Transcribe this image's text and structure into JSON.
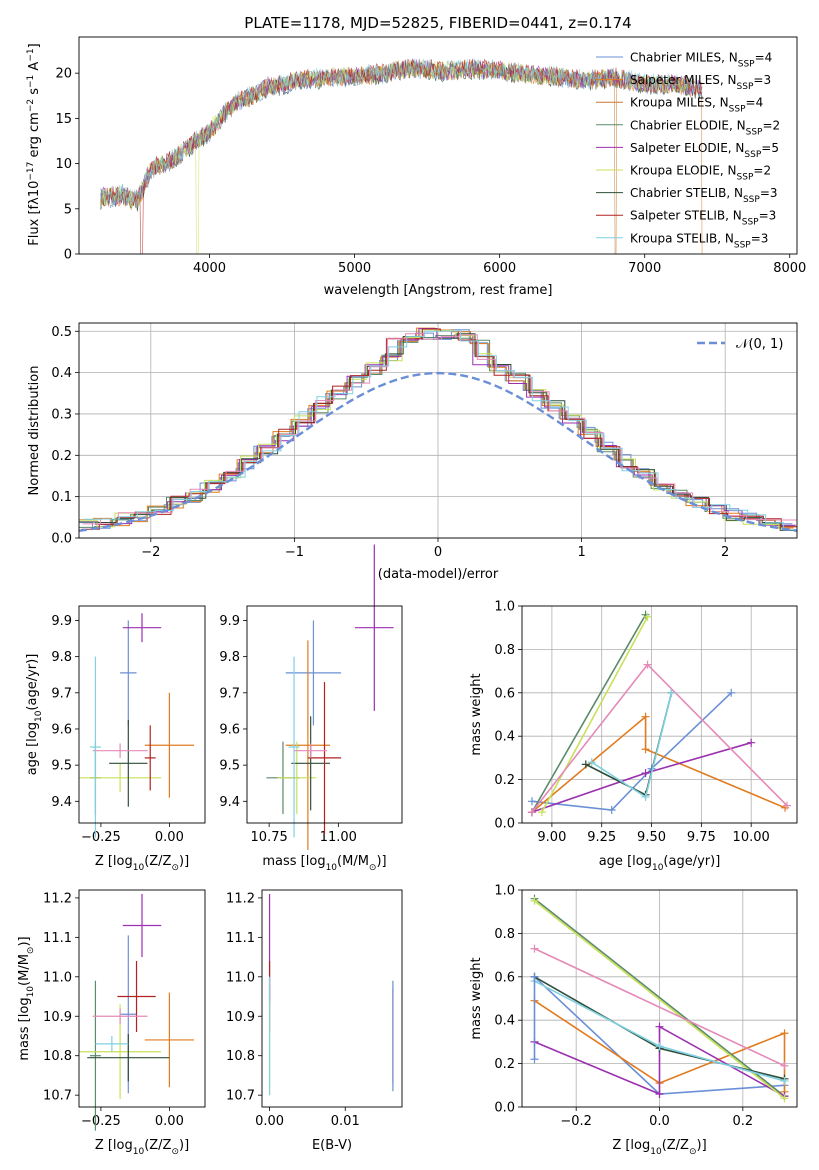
{
  "figure": {
    "title": "PLATE=1178, MJD=52825, FIBERID=0441, z=0.174"
  },
  "colors": {
    "chabrier_miles": "#6b8fd6",
    "salpeter_miles": "#e07b1f",
    "kroupa_miles": "#c9792e",
    "chabrier_elodie": "#5a8a6a",
    "salpeter_elodie": "#9b30b0",
    "kroupa_elodie": "#c8e05a",
    "chabrier_stelib": "#2f4f3a",
    "salpeter_stelib": "#b22222",
    "kroupa_stelib": "#7fd0e0",
    "gaussian": "#6b8fd6",
    "pink": "#e58ab8"
  },
  "chart_data": [
    {
      "id": "spectrum",
      "type": "line",
      "xlabel": "wavelength [Angstrom, rest frame]",
      "ylabel": "Flux [f",
      "ylabel_tex": "λ10",
      "ylabel_sup1": "−17",
      "ylabel_mid": " erg cm",
      "ylabel_sup2": "−2",
      "ylabel_mid2": " s",
      "ylabel_sup3": "−1",
      "ylabel_end": " A",
      "ylabel_sup4": "−1",
      "ylabel_close": "]",
      "xlim": [
        3100,
        8050
      ],
      "ylim": [
        0,
        24
      ],
      "xticks": [
        4000,
        5000,
        6000,
        7000,
        8000
      ],
      "yticks": [
        0,
        5,
        10,
        15,
        20
      ],
      "legend_position": "top-right",
      "envelope": {
        "x": [
          3250,
          3400,
          3500,
          3600,
          3700,
          3800,
          3900,
          4000,
          4100,
          4200,
          4300,
          4400,
          4500,
          4600,
          4800,
          5000,
          5200,
          5400,
          5600,
          5800,
          6000,
          6200,
          6400,
          6600,
          6800,
          7000,
          7200,
          7400
        ],
        "y": [
          6.2,
          6.5,
          5.8,
          9.5,
          10.0,
          11.0,
          12.5,
          13.5,
          15.5,
          17.0,
          17.5,
          18.5,
          18.7,
          19.2,
          19.5,
          19.6,
          20.0,
          20.6,
          20.2,
          20.5,
          20.3,
          19.8,
          19.6,
          19.2,
          19.5,
          18.8,
          18.8,
          18.2
        ]
      },
      "legend": [
        {
          "label": "Chabrier MILES, N",
          "sub": "SSP",
          "suffix": "=4",
          "color": "#6b8fd6"
        },
        {
          "label": "Salpeter MILES, N",
          "sub": "SSP",
          "suffix": "=3",
          "color": "#e07b1f"
        },
        {
          "label": "Kroupa MILES, N",
          "sub": "SSP",
          "suffix": "=4",
          "color": "#c9792e"
        },
        {
          "label": "Chabrier ELODIE, N",
          "sub": "SSP",
          "suffix": "=2",
          "color": "#5a8a6a"
        },
        {
          "label": "Salpeter ELODIE, N",
          "sub": "SSP",
          "suffix": "=5",
          "color": "#9b30b0"
        },
        {
          "label": "Kroupa ELODIE, N",
          "sub": "SSP",
          "suffix": "=2",
          "color": "#c8e05a"
        },
        {
          "label": "Chabrier STELIB, N",
          "sub": "SSP",
          "suffix": "=3",
          "color": "#2f4f3a"
        },
        {
          "label": "Salpeter STELIB, N",
          "sub": "SSP",
          "suffix": "=3",
          "color": "#b22222"
        },
        {
          "label": "Kroupa STELIB, N",
          "sub": "SSP",
          "suffix": "=3",
          "color": "#7fd0e0"
        }
      ]
    },
    {
      "id": "residuals",
      "type": "line",
      "xlabel": "(data-model)/error",
      "ylabel": "Normed distribution",
      "xlim": [
        -2.5,
        2.5
      ],
      "ylim": [
        0,
        0.52
      ],
      "xticks": [
        -2,
        -1,
        0,
        1,
        2
      ],
      "xtick_labels": [
        "−2",
        "−1",
        "0",
        "1",
        "2"
      ],
      "yticks": [
        0.0,
        0.1,
        0.2,
        0.3,
        0.4,
        0.5
      ],
      "ytick_labels": [
        "0.0",
        "0.1",
        "0.2",
        "0.3",
        "0.4",
        "0.5"
      ],
      "grid": true,
      "legend_position": "top-right",
      "gaussian_label": "𝒩(0, 1)",
      "hist_bins": 40
    },
    {
      "id": "age_vs_Z",
      "type": "scatter",
      "xlabel": "Z [log",
      "xlabel_sub": "10",
      "xlabel_rest": "(Z/Z",
      "xlabel_sub2": "⊙",
      "xlabel_end": ")]",
      "ylabel": "age  [log",
      "ylabel_sub": "10",
      "ylabel_rest": "(age/yr)]",
      "xlim": [
        -0.33,
        0.13
      ],
      "ylim": [
        9.34,
        9.94
      ],
      "xticks": [
        -0.25,
        0.0
      ],
      "xtick_labels": [
        "−0.25",
        "0.00"
      ],
      "yticks": [
        9.4,
        9.5,
        9.6,
        9.7,
        9.8,
        9.9
      ],
      "ytick_labels": [
        "9.4",
        "9.5",
        "9.6",
        "9.7",
        "9.8",
        "9.9"
      ],
      "points": [
        {
          "x": -0.15,
          "y": 9.755,
          "xerr": 0.03,
          "yerr": 0.145,
          "color": "#6b8fd6"
        },
        {
          "x": 0.0,
          "y": 9.555,
          "xerr": 0.09,
          "yerr": 0.145,
          "color": "#e07b1f"
        },
        {
          "x": -0.27,
          "y": 9.465,
          "xerr": 0.02,
          "yerr": 0.1,
          "color": "#5a8a6a"
        },
        {
          "x": -0.1,
          "y": 9.88,
          "xerr": 0.07,
          "yerr": 0.04,
          "color": "#9b30b0"
        },
        {
          "x": -0.18,
          "y": 9.465,
          "xerr": 0.15,
          "yerr": 0.04,
          "color": "#c8e05a"
        },
        {
          "x": -0.15,
          "y": 9.505,
          "xerr": 0.07,
          "yerr": 0.12,
          "color": "#2f4f3a"
        },
        {
          "x": -0.07,
          "y": 9.52,
          "xerr": 0.02,
          "yerr": 0.09,
          "color": "#b22222"
        },
        {
          "x": -0.18,
          "y": 9.54,
          "xerr": 0.1,
          "yerr": 0.02,
          "color": "#e58ab8"
        },
        {
          "x": -0.27,
          "y": 9.55,
          "xerr": 0.02,
          "yerr": 0.25,
          "color": "#7fd0e0"
        }
      ]
    },
    {
      "id": "age_vs_mass",
      "type": "scatter",
      "xlabel": "mass [log",
      "xlabel_sub": "10",
      "xlabel_rest": "(M/M",
      "xlabel_sub2": "⊙",
      "xlabel_end": ")]",
      "xlim": [
        10.67,
        11.23
      ],
      "ylim": [
        9.34,
        9.94
      ],
      "xticks": [
        10.75,
        11.0
      ],
      "xtick_labels": [
        "10.75",
        "11.00"
      ],
      "yticks": [
        9.4,
        9.5,
        9.6,
        9.7,
        9.8,
        9.9
      ],
      "ytick_labels": [
        "9.4",
        "9.5",
        "9.6",
        "9.7",
        "9.8",
        "9.9"
      ],
      "points": [
        {
          "x": 10.91,
          "y": 9.755,
          "xerr": 0.1,
          "yerr": 0.145,
          "color": "#6b8fd6"
        },
        {
          "x": 10.89,
          "y": 9.555,
          "xerr": 0.08,
          "yerr": 0.29,
          "color": "#e07b1f"
        },
        {
          "x": 10.8,
          "y": 9.465,
          "xerr": 0.06,
          "yerr": 0.1,
          "color": "#5a8a6a"
        },
        {
          "x": 11.13,
          "y": 9.88,
          "xerr": 0.07,
          "yerr": 0.23,
          "color": "#9b30b0"
        },
        {
          "x": 10.85,
          "y": 9.465,
          "xerr": 0.07,
          "yerr": 0.1,
          "color": "#c8e05a"
        },
        {
          "x": 10.9,
          "y": 9.505,
          "xerr": 0.07,
          "yerr": 0.13,
          "color": "#2f4f3a"
        },
        {
          "x": 10.95,
          "y": 9.52,
          "xerr": 0.06,
          "yerr": 0.21,
          "color": "#b22222"
        },
        {
          "x": 10.9,
          "y": 9.54,
          "xerr": 0.06,
          "yerr": 0.02,
          "color": "#e58ab8"
        },
        {
          "x": 10.84,
          "y": 9.55,
          "xerr": 0.02,
          "yerr": 0.25,
          "color": "#7fd0e0"
        }
      ]
    },
    {
      "id": "weight_vs_age",
      "type": "line",
      "xlabel": "age  [log",
      "xlabel_sub": "10",
      "xlabel_rest": "(age/yr)]",
      "ylabel": "mass weight",
      "xlim": [
        8.85,
        10.23
      ],
      "ylim": [
        0,
        1
      ],
      "xticks": [
        9.0,
        9.25,
        9.5,
        9.75,
        10.0
      ],
      "xtick_labels": [
        "9.00",
        "9.25",
        "9.50",
        "9.75",
        "10.00"
      ],
      "yticks": [
        0.0,
        0.2,
        0.4,
        0.6,
        0.8,
        1.0
      ],
      "ytick_labels": [
        "0.0",
        "0.2",
        "0.4",
        "0.6",
        "0.8",
        "1.0"
      ],
      "grid": true,
      "series": [
        {
          "color": "#6b8fd6",
          "x": [
            8.9,
            9.3,
            9.5,
            9.9
          ],
          "y": [
            0.1,
            0.06,
            0.25,
            0.6
          ]
        },
        {
          "color": "#e07b1f",
          "x": [
            8.9,
            9.47,
            9.47,
            10.17
          ],
          "y": [
            0.05,
            0.49,
            0.34,
            0.07
          ]
        },
        {
          "color": "#5a8a6a",
          "x": [
            8.9,
            9.47
          ],
          "y": [
            0.05,
            0.96
          ]
        },
        {
          "color": "#9b30b0",
          "x": [
            8.9,
            9.47,
            10.0
          ],
          "y": [
            0.05,
            0.23,
            0.37
          ]
        },
        {
          "color": "#c8e05a",
          "x": [
            8.95,
            9.48
          ],
          "y": [
            0.05,
            0.95
          ]
        },
        {
          "color": "#2f4f3a",
          "x": [
            9.17,
            9.47,
            9.6
          ],
          "y": [
            0.27,
            0.13,
            0.6
          ]
        },
        {
          "color": "#e58ab8",
          "x": [
            8.9,
            9.48,
            10.18
          ],
          "y": [
            0.05,
            0.73,
            0.08
          ]
        },
        {
          "color": "#7fd0e0",
          "x": [
            9.2,
            9.47,
            9.6
          ],
          "y": [
            0.28,
            0.12,
            0.6
          ]
        }
      ]
    },
    {
      "id": "mass_vs_Z",
      "type": "scatter",
      "xlabel": "Z [log",
      "xlabel_sub": "10",
      "xlabel_rest": "(Z/Z",
      "xlabel_sub2": "⊙",
      "xlabel_end": ")]",
      "ylabel": "mass [log",
      "ylabel_sub": "10",
      "ylabel_rest": "(M/M",
      "ylabel_sub2": "⊙",
      "ylabel_end": ")]",
      "xlim": [
        -0.33,
        0.13
      ],
      "ylim": [
        10.67,
        11.22
      ],
      "xticks": [
        -0.25,
        0.0
      ],
      "xtick_labels": [
        "−0.25",
        "0.00"
      ],
      "yticks": [
        10.7,
        10.8,
        10.9,
        11.0,
        11.1,
        11.2
      ],
      "ytick_labels": [
        "10.7",
        "10.8",
        "10.9",
        "11.0",
        "11.1",
        "11.2"
      ],
      "points": [
        {
          "x": -0.15,
          "y": 10.905,
          "xerr": 0.03,
          "yerr": 0.2,
          "color": "#6b8fd6"
        },
        {
          "x": 0.0,
          "y": 10.84,
          "xerr": 0.09,
          "yerr": 0.12,
          "color": "#e07b1f"
        },
        {
          "x": -0.27,
          "y": 10.8,
          "xerr": 0.02,
          "yerr": 0.19,
          "color": "#5a8a6a"
        },
        {
          "x": -0.1,
          "y": 11.13,
          "xerr": 0.07,
          "yerr": 0.08,
          "color": "#9b30b0"
        },
        {
          "x": -0.18,
          "y": 10.81,
          "xerr": 0.15,
          "yerr": 0.12,
          "color": "#c8e05a"
        },
        {
          "x": -0.15,
          "y": 10.795,
          "xerr": 0.15,
          "yerr": 0.06,
          "color": "#2f4f3a"
        },
        {
          "x": -0.12,
          "y": 10.95,
          "xerr": 0.07,
          "yerr": 0.09,
          "color": "#b22222"
        },
        {
          "x": -0.18,
          "y": 10.9,
          "xerr": 0.1,
          "yerr": 0.02,
          "color": "#e58ab8"
        },
        {
          "x": -0.21,
          "y": 10.83,
          "xerr": 0.06,
          "yerr": 0.02,
          "color": "#7fd0e0"
        }
      ]
    },
    {
      "id": "mass_vs_ebv",
      "type": "scatter",
      "xlabel": "E(B-V)",
      "xlim": [
        -0.001,
        0.0175
      ],
      "ylim": [
        10.67,
        11.22
      ],
      "xticks": [
        0.0,
        0.01
      ],
      "xtick_labels": [
        "0.00",
        "0.01"
      ],
      "yticks": [
        10.7,
        10.8,
        10.9,
        11.0,
        11.1,
        11.2
      ],
      "ytick_labels": [
        "10.7",
        "10.8",
        "10.9",
        "11.0",
        "11.1",
        "11.2"
      ],
      "points": [
        {
          "x": 0.0,
          "y": 11.07,
          "xerr": 0.0,
          "yerr": 0.14,
          "color": "#9b30b0"
        },
        {
          "x": 0.0,
          "y": 10.95,
          "xerr": 0.0,
          "yerr": 0.09,
          "color": "#b22222"
        },
        {
          "x": 0.0,
          "y": 10.82,
          "xerr": 0.0,
          "yerr": 0.12,
          "color": "#c8e05a"
        },
        {
          "x": 0.0,
          "y": 10.85,
          "xerr": 0.0,
          "yerr": 0.15,
          "color": "#7fd0e0"
        },
        {
          "x": 0.0163,
          "y": 10.85,
          "xerr": 0.0,
          "yerr": 0.12,
          "color": "#e07b1f"
        },
        {
          "x": 0.0163,
          "y": 10.85,
          "xerr": 0.0,
          "yerr": 0.14,
          "color": "#6b8fd6"
        }
      ]
    },
    {
      "id": "weight_vs_Z",
      "type": "line",
      "xlabel": "Z [log",
      "xlabel_sub": "10",
      "xlabel_rest": "(Z/Z",
      "xlabel_sub2": "⊙",
      "xlabel_end": ")]",
      "ylabel": "mass weight",
      "xlim": [
        -0.33,
        0.33
      ],
      "ylim": [
        0,
        1
      ],
      "xticks": [
        -0.2,
        0.0,
        0.2
      ],
      "xtick_labels": [
        "−0.2",
        "0.0",
        "0.2"
      ],
      "yticks": [
        0.0,
        0.2,
        0.4,
        0.6,
        0.8,
        1.0
      ],
      "ytick_labels": [
        "0.0",
        "0.2",
        "0.4",
        "0.6",
        "0.8",
        "1.0"
      ],
      "grid": true,
      "series": [
        {
          "color": "#6b8fd6",
          "x": [
            -0.3,
            0.0,
            0.3
          ],
          "y": [
            0.6,
            0.06,
            0.1
          ]
        },
        {
          "color": "#e07b1f",
          "x": [
            -0.3,
            0.0,
            0.3,
            0.3
          ],
          "y": [
            0.49,
            0.11,
            0.34,
            0.07
          ]
        },
        {
          "color": "#5a8a6a",
          "x": [
            -0.3,
            0.3
          ],
          "y": [
            0.96,
            0.05
          ]
        },
        {
          "color": "#9b30b0",
          "x": [
            -0.3,
            0.0,
            0.0,
            0.3
          ],
          "y": [
            0.3,
            0.06,
            0.37,
            0.05
          ]
        },
        {
          "color": "#c8e05a",
          "x": [
            -0.3,
            0.3
          ],
          "y": [
            0.95,
            0.04
          ]
        },
        {
          "color": "#2f4f3a",
          "x": [
            -0.3,
            0.0,
            0.3
          ],
          "y": [
            0.6,
            0.27,
            0.13
          ]
        },
        {
          "color": "#e58ab8",
          "x": [
            -0.3,
            0.3
          ],
          "y": [
            0.73,
            0.19
          ]
        },
        {
          "color": "#7fd0e0",
          "x": [
            -0.3,
            0.0,
            0.3
          ],
          "y": [
            0.58,
            0.28,
            0.12
          ]
        },
        {
          "color": "#6b8fd6",
          "x": [
            -0.3,
            -0.3
          ],
          "y": [
            0.6,
            0.22
          ]
        }
      ]
    }
  ]
}
